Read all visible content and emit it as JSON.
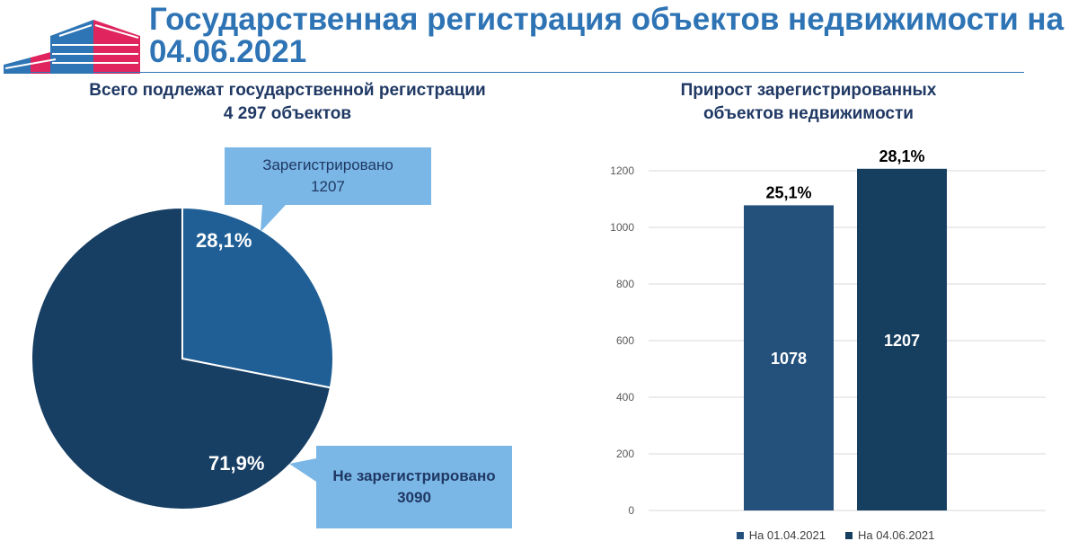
{
  "header": {
    "title": "Государственная регистрация объектов недвижимости на 04.06.2021"
  },
  "colors": {
    "title": "#2e74b5",
    "subtitle": "#1f3864",
    "pie_registered": "#1f5f95",
    "pie_unregistered": "#173e63",
    "callout": "#7bb7e6",
    "bar_first": "#24507c",
    "bar_second": "#163e5f",
    "logo_blue": "#2e75b6",
    "logo_red": "#e0245e"
  },
  "left_panel": {
    "subtitle_line1": "Всего подлежат государственной регистрации",
    "subtitle_line2": "4 297 объектов",
    "callout_registered": {
      "label": "Зарегистрировано",
      "value": "1207"
    },
    "callout_unregistered": {
      "label": "Не зарегистрировано",
      "value": "3090"
    }
  },
  "right_panel": {
    "subtitle_line1": "Прирост зарегистрированных",
    "subtitle_line2": "объектов недвижимости"
  },
  "chart_data": [
    {
      "type": "pie",
      "title": "Всего подлежат государственной регистрации 4 297 объектов",
      "slices": [
        {
          "name": "Зарегистрировано",
          "value": 1207,
          "label": "28,1%"
        },
        {
          "name": "Не зарегистрировано",
          "value": 3090,
          "label": "71,9%"
        }
      ]
    },
    {
      "type": "bar",
      "title": "Прирост зарегистрированных объектов недвижимости",
      "series": [
        {
          "name": "На 01.04.2021",
          "value": 1078,
          "value_label": "1078",
          "top_label": "25,1%"
        },
        {
          "name": "На 04.06.2021",
          "value": 1207,
          "value_label": "1207",
          "top_label": "28,1%"
        }
      ],
      "yticks": [
        "0",
        "200",
        "400",
        "600",
        "800",
        "1000",
        "1200"
      ],
      "ylim": [
        0,
        1200
      ],
      "grid": true,
      "legend": "bottom"
    }
  ]
}
